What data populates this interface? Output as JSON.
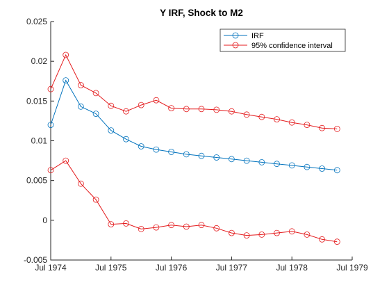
{
  "chart_data": {
    "type": "line",
    "title": "Y IRF, Shock to M2",
    "xlabel": "",
    "ylabel": "",
    "x_ticks": [
      "Jul 1974",
      "Jul 1975",
      "Jul 1976",
      "Jul 1977",
      "Jul 1978",
      "Jul 1979"
    ],
    "y_ticks": [
      "-0.005",
      "0",
      "0.005",
      "0.01",
      "0.015",
      "0.02",
      "0.025"
    ],
    "xlim": [
      "1974-07",
      "1979-07"
    ],
    "ylim": [
      -0.005,
      0.025
    ],
    "x": [
      "1974-07",
      "1974-10",
      "1975-01",
      "1975-04",
      "1975-07",
      "1975-10",
      "1976-01",
      "1976-04",
      "1976-07",
      "1976-10",
      "1977-01",
      "1977-04",
      "1977-07",
      "1977-10",
      "1978-01",
      "1978-04",
      "1978-07",
      "1978-10",
      "1979-01",
      "1979-04"
    ],
    "series": [
      {
        "name": "IRF",
        "color": "#0072BD",
        "values": [
          0.012,
          0.0176,
          0.0143,
          0.0134,
          0.0113,
          0.0102,
          0.0093,
          0.0089,
          0.0086,
          0.0083,
          0.0081,
          0.0079,
          0.0077,
          0.0075,
          0.0073,
          0.0071,
          0.0069,
          0.0067,
          0.0065,
          0.0063
        ]
      },
      {
        "name": "95% confidence interval",
        "color": "#E41A1C",
        "values": [
          0.0165,
          0.0208,
          0.017,
          0.016,
          0.0144,
          0.0137,
          0.0145,
          0.0151,
          0.0141,
          0.014,
          0.014,
          0.0139,
          0.0137,
          0.0133,
          0.013,
          0.0127,
          0.0123,
          0.012,
          0.0116,
          0.0115
        ]
      },
      {
        "name": "",
        "color": "#E41A1C",
        "values": [
          0.0063,
          0.0075,
          0.0046,
          0.0026,
          -0.0005,
          -0.0004,
          -0.0011,
          -0.0009,
          -0.0006,
          -0.0008,
          -0.0006,
          -0.001,
          -0.0016,
          -0.0019,
          -0.0018,
          -0.0016,
          -0.0014,
          -0.0018,
          -0.0024,
          -0.0027
        ]
      }
    ],
    "legend": {
      "placement": "top-right",
      "entries": [
        "IRF",
        "95% confidence interval"
      ]
    },
    "grid": false
  }
}
